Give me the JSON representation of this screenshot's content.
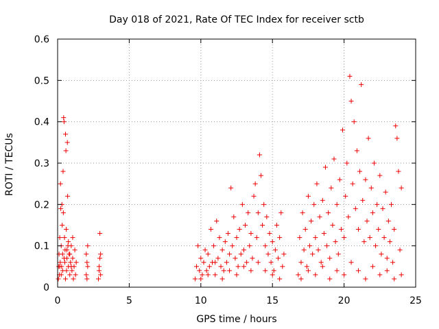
{
  "chart_data": {
    "type": "scatter",
    "title": "Day 018 of 2021, Rate Of TEC Index for receiver sctb",
    "xlabel": "GPS time / hours",
    "ylabel": "ROTI / TECUs",
    "xlim": [
      0,
      25
    ],
    "ylim": [
      0,
      0.6
    ],
    "xticks": [
      0,
      5,
      10,
      15,
      20,
      25
    ],
    "yticks": [
      0,
      0.1,
      0.2,
      0.3,
      0.4,
      0.5,
      0.6
    ],
    "xtick_labels": [
      "0",
      "5",
      "10",
      "15",
      "20",
      "25"
    ],
    "ytick_labels": [
      "0",
      "0.1",
      "0.2",
      "0.3",
      "0.4",
      "0.5",
      "0.6"
    ],
    "grid": true,
    "marker": "+",
    "color": "#ee0000",
    "points": [
      [
        0.05,
        0.02
      ],
      [
        0.08,
        0.05
      ],
      [
        0.1,
        0.08
      ],
      [
        0.12,
        0.03
      ],
      [
        0.15,
        0.12
      ],
      [
        0.18,
        0.06
      ],
      [
        0.2,
        0.25
      ],
      [
        0.22,
        0.19
      ],
      [
        0.25,
        0.1
      ],
      [
        0.28,
        0.05
      ],
      [
        0.3,
        0.2
      ],
      [
        0.32,
        0.15
      ],
      [
        0.35,
        0.08
      ],
      [
        0.38,
        0.28
      ],
      [
        0.4,
        0.18
      ],
      [
        0.42,
        0.41
      ],
      [
        0.45,
        0.4
      ],
      [
        0.48,
        0.12
      ],
      [
        0.5,
        0.06
      ],
      [
        0.52,
        0.09
      ],
      [
        0.55,
        0.37
      ],
      [
        0.58,
        0.33
      ],
      [
        0.6,
        0.14
      ],
      [
        0.62,
        0.04
      ],
      [
        0.65,
        0.07
      ],
      [
        0.68,
        0.35
      ],
      [
        0.7,
        0.22
      ],
      [
        0.72,
        0.1
      ],
      [
        0.75,
        0.05
      ],
      [
        0.8,
        0.08
      ],
      [
        0.85,
        0.03
      ],
      [
        0.9,
        0.06
      ],
      [
        0.95,
        0.1
      ],
      [
        1.0,
        0.04
      ],
      [
        1.05,
        0.07
      ],
      [
        1.1,
        0.02
      ],
      [
        1.15,
        0.05
      ],
      [
        1.2,
        0.09
      ],
      [
        1.25,
        0.03
      ],
      [
        1.3,
        0.06
      ],
      [
        0.15,
        0.05
      ],
      [
        0.25,
        0.03
      ],
      [
        0.35,
        0.04
      ],
      [
        0.45,
        0.07
      ],
      [
        0.55,
        0.02
      ],
      [
        0.65,
        0.09
      ],
      [
        0.75,
        0.11
      ],
      [
        0.85,
        0.08
      ],
      [
        0.95,
        0.05
      ],
      [
        1.05,
        0.12
      ],
      [
        2.0,
        0.03
      ],
      [
        2.05,
        0.06
      ],
      [
        2.1,
        0.1
      ],
      [
        2.0,
        0.08
      ],
      [
        2.05,
        0.02
      ],
      [
        2.1,
        0.05
      ],
      [
        2.85,
        0.02
      ],
      [
        2.9,
        0.05
      ],
      [
        2.95,
        0.13
      ],
      [
        3.0,
        0.08
      ],
      [
        2.9,
        0.04
      ],
      [
        2.95,
        0.07
      ],
      [
        3.0,
        0.03
      ],
      [
        9.6,
        0.02
      ],
      [
        9.7,
        0.05
      ],
      [
        9.8,
        0.1
      ],
      [
        9.9,
        0.04
      ],
      [
        10.0,
        0.07
      ],
      [
        10.1,
        0.03
      ],
      [
        10.2,
        0.06
      ],
      [
        10.3,
        0.09
      ],
      [
        10.4,
        0.04
      ],
      [
        10.5,
        0.08
      ],
      [
        10.6,
        0.05
      ],
      [
        10.7,
        0.14
      ],
      [
        10.8,
        0.06
      ],
      [
        10.9,
        0.1
      ],
      [
        11.0,
        0.03
      ],
      [
        11.1,
        0.16
      ],
      [
        11.2,
        0.07
      ],
      [
        11.3,
        0.12
      ],
      [
        11.4,
        0.05
      ],
      [
        11.5,
        0.09
      ],
      [
        11.6,
        0.04
      ],
      [
        11.7,
        0.11
      ],
      [
        11.8,
        0.06
      ],
      [
        11.9,
        0.13
      ],
      [
        12.0,
        0.08
      ],
      [
        12.1,
        0.24
      ],
      [
        12.2,
        0.1
      ],
      [
        12.3,
        0.17
      ],
      [
        12.4,
        0.07
      ],
      [
        12.5,
        0.12
      ],
      [
        12.6,
        0.05
      ],
      [
        12.7,
        0.14
      ],
      [
        12.8,
        0.08
      ],
      [
        12.9,
        0.2
      ],
      [
        13.0,
        0.09
      ],
      [
        13.1,
        0.15
      ],
      [
        13.2,
        0.06
      ],
      [
        13.3,
        0.18
      ],
      [
        13.4,
        0.1
      ],
      [
        13.5,
        0.13
      ],
      [
        13.6,
        0.07
      ],
      [
        13.7,
        0.22
      ],
      [
        13.8,
        0.25
      ],
      [
        13.9,
        0.12
      ],
      [
        14.0,
        0.18
      ],
      [
        14.1,
        0.32
      ],
      [
        14.2,
        0.27
      ],
      [
        14.3,
        0.15
      ],
      [
        14.4,
        0.2
      ],
      [
        14.5,
        0.1
      ],
      [
        14.6,
        0.17
      ],
      [
        14.7,
        0.08
      ],
      [
        14.8,
        0.13
      ],
      [
        14.9,
        0.06
      ],
      [
        15.0,
        0.11
      ],
      [
        15.1,
        0.04
      ],
      [
        15.2,
        0.09
      ],
      [
        15.3,
        0.15
      ],
      [
        15.4,
        0.07
      ],
      [
        15.5,
        0.12
      ],
      [
        15.6,
        0.18
      ],
      [
        15.7,
        0.05
      ],
      [
        15.8,
        0.08
      ],
      [
        10.0,
        0.02
      ],
      [
        10.5,
        0.03
      ],
      [
        11.0,
        0.06
      ],
      [
        11.5,
        0.02
      ],
      [
        12.0,
        0.04
      ],
      [
        12.5,
        0.03
      ],
      [
        13.0,
        0.05
      ],
      [
        13.5,
        0.04
      ],
      [
        14.0,
        0.06
      ],
      [
        14.5,
        0.04
      ],
      [
        15.0,
        0.03
      ],
      [
        15.5,
        0.02
      ],
      [
        16.8,
        0.03
      ],
      [
        16.9,
        0.12
      ],
      [
        17.0,
        0.06
      ],
      [
        17.1,
        0.18
      ],
      [
        17.2,
        0.09
      ],
      [
        17.3,
        0.14
      ],
      [
        17.4,
        0.05
      ],
      [
        17.5,
        0.22
      ],
      [
        17.6,
        0.1
      ],
      [
        17.7,
        0.16
      ],
      [
        17.8,
        0.08
      ],
      [
        17.9,
        0.2
      ],
      [
        18.0,
        0.12
      ],
      [
        18.1,
        0.25
      ],
      [
        18.2,
        0.09
      ],
      [
        18.3,
        0.17
      ],
      [
        18.4,
        0.06
      ],
      [
        18.5,
        0.21
      ],
      [
        18.6,
        0.13
      ],
      [
        18.7,
        0.29
      ],
      [
        18.8,
        0.1
      ],
      [
        18.9,
        0.18
      ],
      [
        19.0,
        0.07
      ],
      [
        19.1,
        0.24
      ],
      [
        19.2,
        0.15
      ],
      [
        19.3,
        0.31
      ],
      [
        19.4,
        0.11
      ],
      [
        19.5,
        0.2
      ],
      [
        19.6,
        0.08
      ],
      [
        19.7,
        0.26
      ],
      [
        19.8,
        0.14
      ],
      [
        19.9,
        0.38
      ],
      [
        20.0,
        0.12
      ],
      [
        20.1,
        0.22
      ],
      [
        20.2,
        0.3
      ],
      [
        20.3,
        0.17
      ],
      [
        20.4,
        0.51
      ],
      [
        20.5,
        0.45
      ],
      [
        20.6,
        0.25
      ],
      [
        20.7,
        0.4
      ],
      [
        20.8,
        0.19
      ],
      [
        20.9,
        0.33
      ],
      [
        21.0,
        0.14
      ],
      [
        21.1,
        0.28
      ],
      [
        21.2,
        0.49
      ],
      [
        21.3,
        0.21
      ],
      [
        21.4,
        0.11
      ],
      [
        21.5,
        0.26
      ],
      [
        21.6,
        0.16
      ],
      [
        21.7,
        0.36
      ],
      [
        21.8,
        0.12
      ],
      [
        21.9,
        0.24
      ],
      [
        22.0,
        0.18
      ],
      [
        22.1,
        0.3
      ],
      [
        22.2,
        0.1
      ],
      [
        22.3,
        0.2
      ],
      [
        22.4,
        0.14
      ],
      [
        22.5,
        0.27
      ],
      [
        22.6,
        0.08
      ],
      [
        22.7,
        0.19
      ],
      [
        22.8,
        0.12
      ],
      [
        22.9,
        0.23
      ],
      [
        23.0,
        0.07
      ],
      [
        23.1,
        0.16
      ],
      [
        23.2,
        0.11
      ],
      [
        23.3,
        0.2
      ],
      [
        23.4,
        0.06
      ],
      [
        23.5,
        0.14
      ],
      [
        23.6,
        0.39
      ],
      [
        23.7,
        0.36
      ],
      [
        23.8,
        0.28
      ],
      [
        23.9,
        0.09
      ],
      [
        24.0,
        0.24
      ],
      [
        17.0,
        0.02
      ],
      [
        17.5,
        0.04
      ],
      [
        18.0,
        0.03
      ],
      [
        18.5,
        0.05
      ],
      [
        19.0,
        0.02
      ],
      [
        19.5,
        0.04
      ],
      [
        20.0,
        0.03
      ],
      [
        20.5,
        0.06
      ],
      [
        21.0,
        0.04
      ],
      [
        21.5,
        0.02
      ],
      [
        22.0,
        0.05
      ],
      [
        22.5,
        0.03
      ],
      [
        23.0,
        0.04
      ],
      [
        23.5,
        0.02
      ],
      [
        24.0,
        0.03
      ]
    ]
  }
}
